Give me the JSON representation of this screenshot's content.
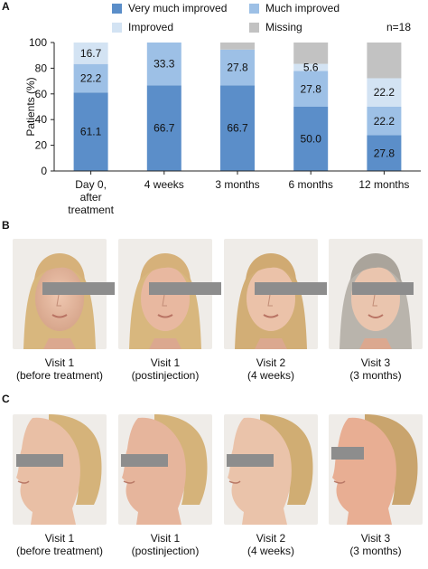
{
  "panels": {
    "a": "A",
    "b": "B",
    "c": "C"
  },
  "legend": {
    "very_much_improved": "Very much improved",
    "much_improved": "Much improved",
    "improved": "Improved",
    "missing": "Missing",
    "n_label": "n=18"
  },
  "colors": {
    "very_much_improved": "#5b8ec9",
    "much_improved": "#9dc0e6",
    "improved": "#d3e3f3",
    "missing": "#c2c2c2",
    "axis": "#222222",
    "grid": "#e5e5e5"
  },
  "chart_data": {
    "type": "bar",
    "stacked": true,
    "ylabel": "Patients (%)",
    "xlabel": "",
    "ylim": [
      0,
      100
    ],
    "yticks": [
      0,
      20,
      40,
      60,
      80,
      100
    ],
    "categories": [
      [
        "Day 0,",
        "after",
        "treatment"
      ],
      [
        "4 weeks"
      ],
      [
        "3 months"
      ],
      [
        "6 months"
      ],
      [
        "12 months"
      ]
    ],
    "series": [
      {
        "name": "Very much improved",
        "values": [
          61.1,
          66.7,
          66.7,
          50.0,
          27.8
        ],
        "labels": [
          "61.1",
          "66.7",
          "66.7",
          "50.0",
          "27.8"
        ]
      },
      {
        "name": "Much improved",
        "values": [
          22.2,
          33.3,
          27.8,
          27.8,
          22.2
        ],
        "labels": [
          "22.2",
          "33.3",
          "27.8",
          "27.8",
          "22.2"
        ]
      },
      {
        "name": "Improved",
        "values": [
          16.7,
          0,
          0,
          5.6,
          22.2
        ],
        "labels": [
          "16.7",
          "",
          "",
          "5.6",
          "22.2"
        ]
      },
      {
        "name": "Missing",
        "values": [
          0,
          0,
          5.5,
          16.6,
          27.8
        ],
        "labels": [
          "",
          "",
          "",
          "",
          ""
        ]
      }
    ]
  },
  "photos_b": {
    "captions": [
      [
        "Visit 1",
        "(before treatment)"
      ],
      [
        "Visit 1",
        "(postinjection)"
      ],
      [
        "Visit 2",
        "(4 weeks)"
      ],
      [
        "Visit 3",
        "(3 months)"
      ]
    ]
  },
  "photos_c": {
    "captions": [
      [
        "Visit 1",
        "(before treatment)"
      ],
      [
        "Visit 1",
        "(postinjection)"
      ],
      [
        "Visit 2",
        "(4 weeks)"
      ],
      [
        "Visit 3",
        "(3 months)"
      ]
    ]
  }
}
